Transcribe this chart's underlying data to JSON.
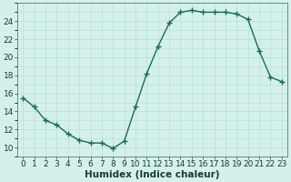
{
  "x": [
    0,
    1,
    2,
    3,
    4,
    5,
    6,
    7,
    8,
    9,
    10,
    11,
    12,
    13,
    14,
    15,
    16,
    17,
    18,
    19,
    20,
    21,
    22,
    23
  ],
  "y": [
    15.5,
    14.5,
    13.0,
    12.5,
    11.5,
    10.8,
    10.5,
    10.5,
    9.9,
    10.7,
    14.5,
    18.2,
    21.2,
    23.8,
    25.0,
    25.2,
    25.0,
    25.0,
    25.0,
    24.8,
    24.2,
    20.7,
    17.8,
    17.3
  ],
  "xlabel": "Humidex (Indice chaleur)",
  "ylim": [
    9.0,
    26.0
  ],
  "xlim": [
    -0.5,
    23.5
  ],
  "yticks": [
    10,
    12,
    14,
    16,
    18,
    20,
    22,
    24
  ],
  "xticks": [
    0,
    1,
    2,
    3,
    4,
    5,
    6,
    7,
    8,
    9,
    10,
    11,
    12,
    13,
    14,
    15,
    16,
    17,
    18,
    19,
    20,
    21,
    22,
    23
  ],
  "line_color": "#1a6b5a",
  "marker": "+",
  "bg_color": "#d4f0eb",
  "grid_color": "#b8ddd7",
  "axis_color": "#5a7a75",
  "font_color": "#1a3a35",
  "tick_fontsize": 6.5,
  "xlabel_fontsize": 7.5,
  "marker_size": 4,
  "marker_edge_width": 1.0,
  "line_width": 1.0
}
